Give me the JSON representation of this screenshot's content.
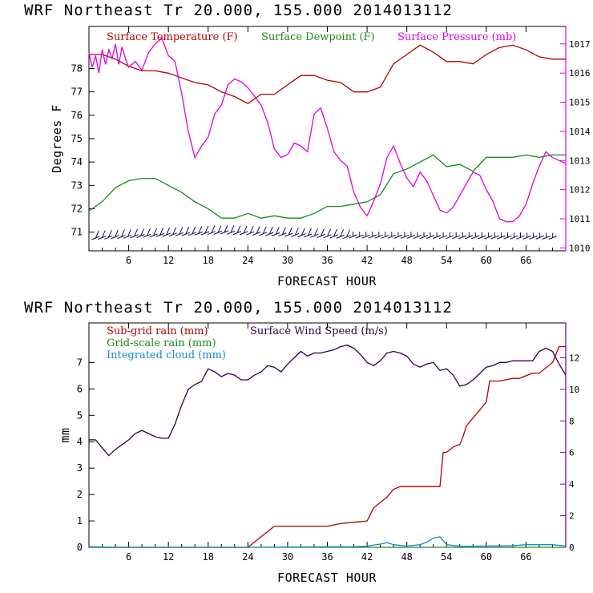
{
  "colors": {
    "temperature": "#b00000",
    "dewpoint": "#1a8a1a",
    "pressure": "#e000e0",
    "barb": "#1a0a4a",
    "subgrid_rain": "#b00000",
    "gridscale_rain": "#1a8a1a",
    "cloud": "#1a88cc",
    "wind_speed": "#300040",
    "right_axis_magenta": "#e000e0",
    "right_axis_purple": "#6a00a0"
  },
  "chart_data": [
    {
      "type": "line",
      "title": "WRF  Northeast Tr  20.000, 155.000  2014013112",
      "xlabel": "FORECAST HOUR",
      "ylabel": "Degrees F",
      "xlim": [
        0,
        72
      ],
      "ylim": [
        70.2,
        79.8
      ],
      "xticks": [
        6,
        12,
        18,
        24,
        30,
        36,
        42,
        48,
        54,
        60,
        66
      ],
      "yticks": [
        71,
        72,
        73,
        74,
        75,
        76,
        77,
        78
      ],
      "y2lim": [
        1009.9,
        1017.6
      ],
      "y2ticks": [
        1010,
        1011,
        1012,
        1013,
        1014,
        1015,
        1016,
        1017
      ],
      "series": [
        {
          "name": "Surface Temperature (F)",
          "axis": "left",
          "x": [
            0,
            2,
            4,
            6,
            8,
            10,
            12,
            14,
            16,
            18,
            20,
            22,
            24,
            26,
            28,
            30,
            32,
            34,
            36,
            38,
            40,
            42,
            44,
            46,
            48,
            50,
            52,
            54,
            56,
            58,
            60,
            62,
            64,
            66,
            68,
            70,
            72
          ],
          "values": [
            78.6,
            78.6,
            78.4,
            78.1,
            77.9,
            77.9,
            77.8,
            77.6,
            77.4,
            77.3,
            77.0,
            76.8,
            76.5,
            76.9,
            76.9,
            77.3,
            77.7,
            77.7,
            77.5,
            77.4,
            77.0,
            77.0,
            77.2,
            78.2,
            78.6,
            79.0,
            78.7,
            78.3,
            78.3,
            78.2,
            78.6,
            78.9,
            79.0,
            78.8,
            78.5,
            78.4,
            78.4
          ]
        },
        {
          "name": "Surface Dewpoint (F)",
          "axis": "left",
          "x": [
            0,
            2,
            4,
            6,
            8,
            10,
            12,
            14,
            16,
            18,
            20,
            22,
            24,
            26,
            28,
            30,
            32,
            34,
            36,
            38,
            40,
            42,
            44,
            46,
            48,
            50,
            52,
            54,
            56,
            58,
            60,
            62,
            64,
            66,
            68,
            70,
            72
          ],
          "values": [
            71.9,
            72.3,
            72.9,
            73.2,
            73.3,
            73.3,
            73.0,
            72.7,
            72.3,
            72.0,
            71.6,
            71.6,
            71.8,
            71.6,
            71.7,
            71.6,
            71.6,
            71.8,
            72.1,
            72.1,
            72.2,
            72.3,
            72.6,
            73.5,
            73.7,
            74.0,
            74.3,
            73.8,
            73.9,
            73.6,
            74.2,
            74.2,
            74.2,
            74.3,
            74.2,
            74.3,
            74.3
          ]
        },
        {
          "name": "Surface Pressure (mb)",
          "axis": "right",
          "x": [
            0,
            0.5,
            1,
            1.5,
            2,
            2.5,
            3,
            3.5,
            4,
            4.5,
            5,
            5.5,
            6,
            7,
            8,
            9,
            10,
            11,
            12,
            13,
            14,
            15,
            16,
            17,
            18,
            19,
            20,
            21,
            22,
            23,
            24,
            25,
            26,
            27,
            28,
            29,
            30,
            31,
            32,
            33,
            34,
            35,
            36,
            37,
            38,
            39,
            40,
            41,
            42,
            43,
            44,
            45,
            46,
            47,
            48,
            49,
            50,
            51,
            52,
            53,
            54,
            55,
            56,
            57,
            58,
            59,
            60,
            61,
            62,
            63,
            64,
            65,
            66,
            67,
            68,
            69,
            70,
            71,
            72
          ],
          "values": [
            1016.7,
            1016.2,
            1016.6,
            1016.0,
            1016.8,
            1016.3,
            1016.8,
            1016.5,
            1017.0,
            1016.3,
            1016.9,
            1016.5,
            1016.2,
            1016.4,
            1016.1,
            1016.7,
            1017.0,
            1017.2,
            1016.6,
            1016.4,
            1015.3,
            1014.0,
            1013.1,
            1013.5,
            1013.8,
            1014.6,
            1014.9,
            1015.6,
            1015.8,
            1015.7,
            1015.5,
            1015.2,
            1014.9,
            1014.3,
            1013.4,
            1013.1,
            1013.2,
            1013.6,
            1013.5,
            1013.3,
            1014.6,
            1014.8,
            1014.1,
            1013.3,
            1013.0,
            1012.8,
            1011.9,
            1011.4,
            1011.1,
            1011.6,
            1012.2,
            1013.1,
            1013.5,
            1012.9,
            1012.4,
            1012.1,
            1012.6,
            1012.3,
            1011.8,
            1011.3,
            1011.2,
            1011.4,
            1011.8,
            1012.2,
            1012.6,
            1012.5,
            1012.0,
            1011.6,
            1011.0,
            1010.9,
            1010.9,
            1011.1,
            1011.5,
            1012.2,
            1012.8,
            1013.3,
            1013.1,
            1013.0,
            1012.9
          ]
        }
      ],
      "wind_barbs": {
        "description_none": "",
        "count": 72
      }
    },
    {
      "type": "line",
      "title": "WRF  Northeast Tr  20.000, 155.000  2014013112",
      "xlabel": "FORECAST HOUR",
      "ylabel": "mm",
      "xlim": [
        0,
        72
      ],
      "ylim": [
        0,
        8.5
      ],
      "xticks": [
        6,
        12,
        18,
        24,
        30,
        36,
        42,
        48,
        54,
        60,
        66
      ],
      "yticks": [
        0,
        1,
        2,
        3,
        4,
        5,
        6,
        7
      ],
      "y2lim": [
        0,
        14.2
      ],
      "y2ticks": [
        0,
        2,
        4,
        6,
        8,
        10,
        12
      ],
      "series": [
        {
          "name": "Sub-grid rain (mm)",
          "axis": "left",
          "x": [
            0,
            24,
            26,
            27,
            28,
            36,
            37,
            38,
            40,
            42,
            43,
            44,
            45,
            46,
            47,
            48,
            52,
            53,
            53.5,
            54,
            55,
            56,
            56.5,
            57,
            58,
            59,
            60,
            60.5,
            61,
            62,
            64,
            65,
            66,
            67,
            68,
            69,
            70,
            71,
            72
          ],
          "values": [
            0.0,
            0.0,
            0.4,
            0.6,
            0.8,
            0.8,
            0.85,
            0.9,
            0.95,
            1.0,
            1.5,
            1.7,
            1.9,
            2.2,
            2.3,
            2.3,
            2.3,
            2.3,
            3.6,
            3.6,
            3.8,
            3.9,
            4.2,
            4.6,
            4.9,
            5.2,
            5.5,
            6.3,
            6.3,
            6.3,
            6.4,
            6.4,
            6.5,
            6.6,
            6.6,
            6.8,
            7.0,
            7.6,
            7.6
          ]
        },
        {
          "name": "Grid-scale rain (mm)",
          "axis": "left",
          "x": [
            0,
            72
          ],
          "values": [
            0.0,
            0.0
          ]
        },
        {
          "name": "Integrated cloud (mm)",
          "axis": "left",
          "x": [
            0,
            6,
            12,
            18,
            24,
            30,
            36,
            40,
            42,
            44,
            45,
            46,
            48,
            50,
            51,
            52,
            53,
            54,
            56,
            60,
            64,
            66,
            70,
            72
          ],
          "values": [
            0.02,
            0.0,
            0.0,
            0.0,
            0.0,
            0.01,
            0.02,
            0.02,
            0.05,
            0.12,
            0.18,
            0.1,
            0.05,
            0.1,
            0.2,
            0.35,
            0.4,
            0.1,
            0.04,
            0.05,
            0.06,
            0.1,
            0.1,
            0.05
          ]
        },
        {
          "name": "Surface Wind Speed (m/s)",
          "axis": "right",
          "x": [
            0,
            1,
            2,
            3,
            4,
            5,
            6,
            7,
            8,
            9,
            10,
            11,
            12,
            13,
            14,
            15,
            16,
            17,
            18,
            19,
            20,
            21,
            22,
            23,
            24,
            25,
            26,
            27,
            28,
            29,
            30,
            31,
            32,
            33,
            34,
            35,
            36,
            37,
            38,
            39,
            40,
            41,
            42,
            43,
            44,
            45,
            46,
            47,
            48,
            49,
            50,
            51,
            52,
            53,
            54,
            55,
            56,
            57,
            58,
            59,
            60,
            61,
            62,
            63,
            64,
            65,
            66,
            67,
            68,
            69,
            70,
            71,
            72
          ],
          "values": [
            6.8,
            6.8,
            6.3,
            5.8,
            6.2,
            6.5,
            6.8,
            7.2,
            7.4,
            7.2,
            7.0,
            6.9,
            6.9,
            7.8,
            9.0,
            10.0,
            10.3,
            10.5,
            11.3,
            11.1,
            10.8,
            11.0,
            10.9,
            10.6,
            10.6,
            10.9,
            11.1,
            11.5,
            11.4,
            11.1,
            11.6,
            12.0,
            12.4,
            12.1,
            12.3,
            12.3,
            12.4,
            12.5,
            12.7,
            12.8,
            12.6,
            12.2,
            11.7,
            11.5,
            11.8,
            12.3,
            12.4,
            12.3,
            12.1,
            11.6,
            11.4,
            11.6,
            11.7,
            11.2,
            11.3,
            10.9,
            10.2,
            10.3,
            10.6,
            11.0,
            11.4,
            11.5,
            11.7,
            11.7,
            11.8,
            11.8,
            11.8,
            11.8,
            12.4,
            12.6,
            12.4,
            11.6,
            10.9
          ]
        }
      ]
    }
  ]
}
